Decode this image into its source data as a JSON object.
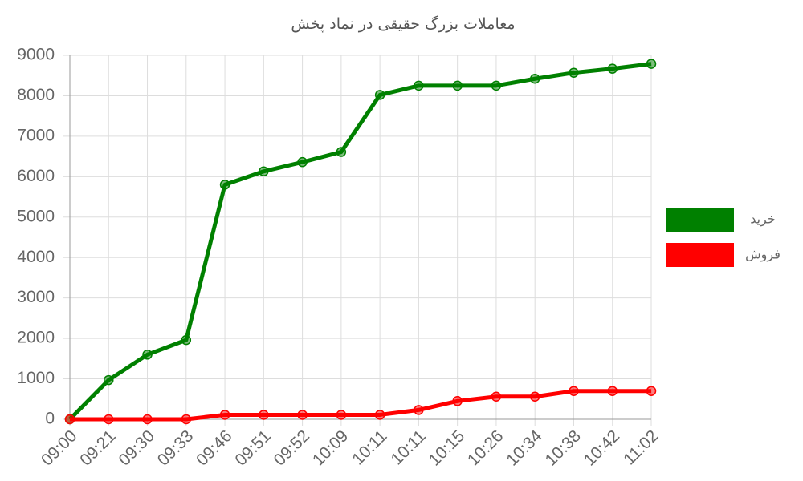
{
  "chart_data": {
    "type": "line",
    "title": "معاملات بزرگ حقیقی در نماد پخش",
    "categories": [
      "09:00",
      "09:21",
      "09:30",
      "09:33",
      "09:46",
      "09:51",
      "09:52",
      "10:09",
      "10:11",
      "10:11",
      "10:15",
      "10:26",
      "10:34",
      "10:38",
      "10:42",
      "11:02"
    ],
    "series": [
      {
        "name": "خرید",
        "color": "#008000",
        "values": [
          0,
          970,
          1600,
          1960,
          5800,
          6130,
          6360,
          6610,
          8020,
          8250,
          8250,
          8250,
          8420,
          8570,
          8670,
          8790
        ]
      },
      {
        "name": "فروش",
        "color": "#ff0000",
        "values": [
          0,
          0,
          0,
          0,
          110,
          110,
          110,
          110,
          110,
          230,
          450,
          560,
          560,
          700,
          700,
          700
        ]
      }
    ],
    "ylim": [
      0,
      9000
    ],
    "yticks": [
      0,
      1000,
      2000,
      3000,
      4000,
      5000,
      6000,
      7000,
      8000,
      9000
    ],
    "grid": true,
    "legend": "right"
  }
}
